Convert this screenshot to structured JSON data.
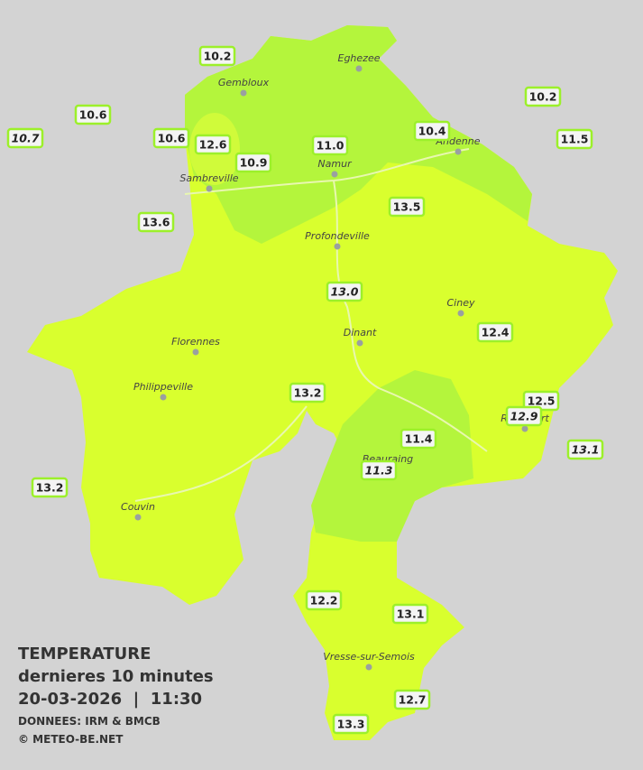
{
  "header": {
    "title": "TEMPERATURE",
    "subtitle": "dernieres 10 minutes",
    "datetime": "20-03-2026  |  11:30",
    "source": "DONNEES: IRM & BMCB",
    "credit": "© METEO-BE.NET"
  },
  "cities": [
    "Eghezee",
    "Gembloux",
    "Andenne",
    "Namur",
    "Sambreville",
    "Profondeville",
    "Ciney",
    "Dinant",
    "Florennes",
    "Philippeville",
    "Rochefort",
    "Beauraing",
    "Couvin",
    "Vresse-sur-Semois"
  ],
  "stations": [
    {
      "value": 10.2,
      "italic": false
    },
    {
      "value": 10.6,
      "italic": false
    },
    {
      "value": 10.7,
      "italic": true
    },
    {
      "value": 10.6,
      "italic": false
    },
    {
      "value": 12.6,
      "italic": false
    },
    {
      "value": 10.9,
      "italic": false
    },
    {
      "value": 11.0,
      "label": "11.0",
      "italic": false
    },
    {
      "value": 10.4,
      "italic": false
    },
    {
      "value": 10.2,
      "italic": false
    },
    {
      "value": 11.5,
      "italic": false
    },
    {
      "value": 13.6,
      "italic": false
    },
    {
      "value": 13.5,
      "italic": false
    },
    {
      "value": 13.0,
      "label": "13.0",
      "italic": true
    },
    {
      "value": 12.4,
      "italic": false
    },
    {
      "value": 13.2,
      "italic": false
    },
    {
      "value": 12.5,
      "italic": false
    },
    {
      "value": 12.9,
      "italic": true
    },
    {
      "value": 13.1,
      "italic": true
    },
    {
      "value": 11.4,
      "italic": false
    },
    {
      "value": 11.3,
      "italic": true
    },
    {
      "value": 13.2,
      "italic": false
    },
    {
      "value": 12.2,
      "italic": false
    },
    {
      "value": 13.1,
      "italic": false
    },
    {
      "value": 12.7,
      "italic": false
    },
    {
      "value": 13.3,
      "italic": false
    }
  ]
}
